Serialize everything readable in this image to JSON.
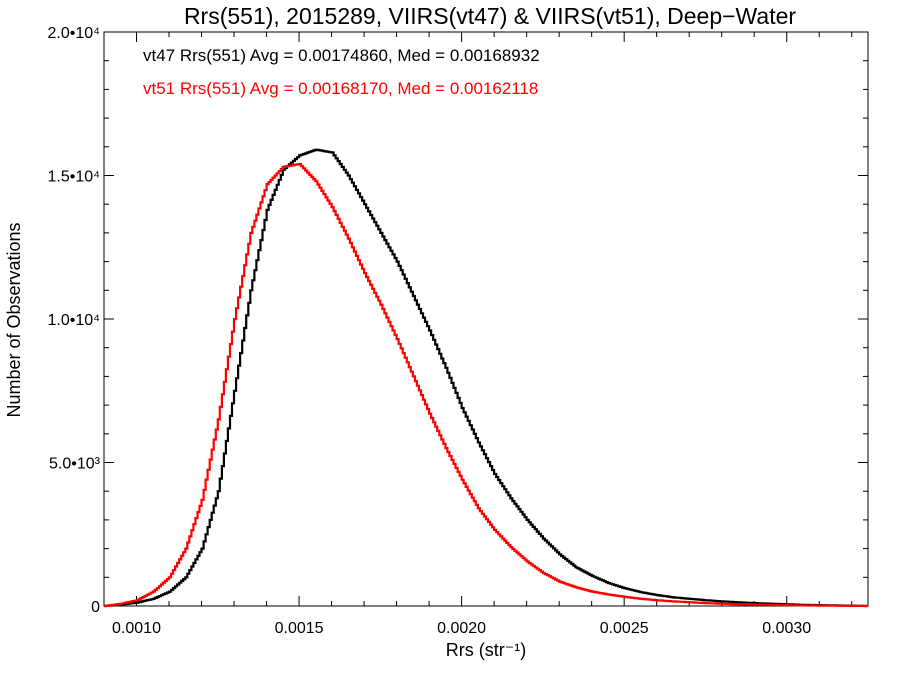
{
  "chart_data": {
    "type": "line",
    "title": "Rrs(551), 2015289, VIIRS(vt47) & VIIRS(vt51), Deep−Water",
    "xlabel": "Rrs (str⁻¹)",
    "ylabel": "Number of Observations",
    "xlim": [
      0.0009,
      0.00325
    ],
    "ylim": [
      0,
      20000
    ],
    "x_ticks": [
      "0.0010",
      "0.0015",
      "0.0020",
      "0.0025",
      "0.0030"
    ],
    "y_ticks": [
      "0",
      "5.0•10³",
      "1.0•10⁴",
      "1.5•10⁴",
      "2.0•10⁴"
    ],
    "grid": false,
    "step_style": true,
    "annotations": [
      {
        "text": "vt47 Rrs(551) Avg = 0.00174860, Med = 0.00168932",
        "color": "#000000"
      },
      {
        "text": "vt51 Rrs(551) Avg = 0.00168170, Med = 0.00162118",
        "color": "#ff0000"
      }
    ],
    "series": [
      {
        "color": "#000000",
        "x": [
          0.0009,
          0.00095,
          0.001,
          0.00105,
          0.0011,
          0.00115,
          0.0012,
          0.00125,
          0.0013,
          0.00135,
          0.0014,
          0.00145,
          0.0015,
          0.00155,
          0.0016,
          0.00165,
          0.0017,
          0.00175,
          0.0018,
          0.00185,
          0.0019,
          0.00195,
          0.002,
          0.00205,
          0.0021,
          0.00215,
          0.0022,
          0.00225,
          0.0023,
          0.00235,
          0.0024,
          0.00245,
          0.0025,
          0.00255,
          0.0026,
          0.00265,
          0.0027,
          0.00275,
          0.0028,
          0.00285,
          0.0029,
          0.00295,
          0.003,
          0.00305,
          0.0031,
          0.00315,
          0.0032,
          0.00325
        ],
        "y": [
          0,
          50,
          120,
          250,
          500,
          1000,
          2000,
          4000,
          7500,
          11000,
          13800,
          15200,
          15700,
          15900,
          15800,
          15000,
          14000,
          13000,
          12000,
          10800,
          9600,
          8300,
          6900,
          5700,
          4600,
          3750,
          3000,
          2350,
          1800,
          1350,
          1050,
          800,
          620,
          480,
          380,
          300,
          250,
          200,
          160,
          130,
          100,
          80,
          60,
          40,
          30,
          20,
          10,
          0
        ]
      },
      {
        "color": "#ff0000",
        "x": [
          0.0009,
          0.00095,
          0.001,
          0.00105,
          0.0011,
          0.00115,
          0.0012,
          0.00125,
          0.0013,
          0.00135,
          0.0014,
          0.00145,
          0.0015,
          0.00155,
          0.0016,
          0.00165,
          0.0017,
          0.00175,
          0.0018,
          0.00185,
          0.0019,
          0.00195,
          0.002,
          0.00205,
          0.0021,
          0.00215,
          0.0022,
          0.00225,
          0.0023,
          0.00235,
          0.0024,
          0.00245,
          0.0025,
          0.00255,
          0.0026,
          0.00265,
          0.0027,
          0.00275,
          0.0028,
          0.00285,
          0.0029,
          0.00295,
          0.003,
          0.00305,
          0.0031,
          0.00315,
          0.0032,
          0.00325
        ],
        "y": [
          0,
          80,
          200,
          500,
          1000,
          2000,
          3700,
          6500,
          10000,
          13000,
          14700,
          15300,
          15400,
          14800,
          13900,
          12800,
          11600,
          10500,
          9300,
          8000,
          6700,
          5500,
          4400,
          3400,
          2650,
          2050,
          1550,
          1150,
          850,
          650,
          500,
          400,
          320,
          250,
          200,
          160,
          130,
          100,
          80,
          60,
          50,
          40,
          30,
          20,
          15,
          10,
          5,
          0
        ]
      }
    ]
  }
}
